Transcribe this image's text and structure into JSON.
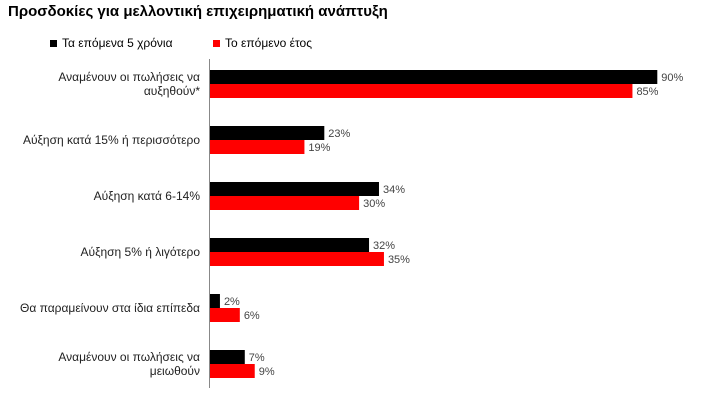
{
  "title": "Προσδοκίες για μελλοντική επιχειρηματική ανάπτυξη",
  "chart_data": {
    "type": "bar",
    "orientation": "horizontal",
    "categories": [
      "Αναμένουν οι πωλήσεις να αυξηθούν*",
      "Αύξηση κατά 15% ή περισσότερο",
      "Αύξηση κατά 6-14%",
      "Αύξηση 5% ή λιγότερο",
      "Θα παραμείνουν στα ίδια επίπεδα",
      "Αναμένουν οι πωλήσεις να μειωθούν"
    ],
    "series": [
      {
        "name": "Τα επόμενα 5 χρόνια",
        "color": "#000000",
        "values": [
          90,
          23,
          34,
          32,
          2,
          7
        ],
        "labels": [
          "90%",
          "23%",
          "34%",
          "32%",
          "2%",
          "7%"
        ]
      },
      {
        "name": "Το επόμενο έτος",
        "color": "#ff0000",
        "values": [
          85,
          19,
          30,
          35,
          6,
          9
        ],
        "labels": [
          "85%",
          "19%",
          "30%",
          "35%",
          "6%",
          "9%"
        ]
      }
    ],
    "xlim": [
      0,
      100
    ],
    "legend_position": "top",
    "grid": false
  }
}
